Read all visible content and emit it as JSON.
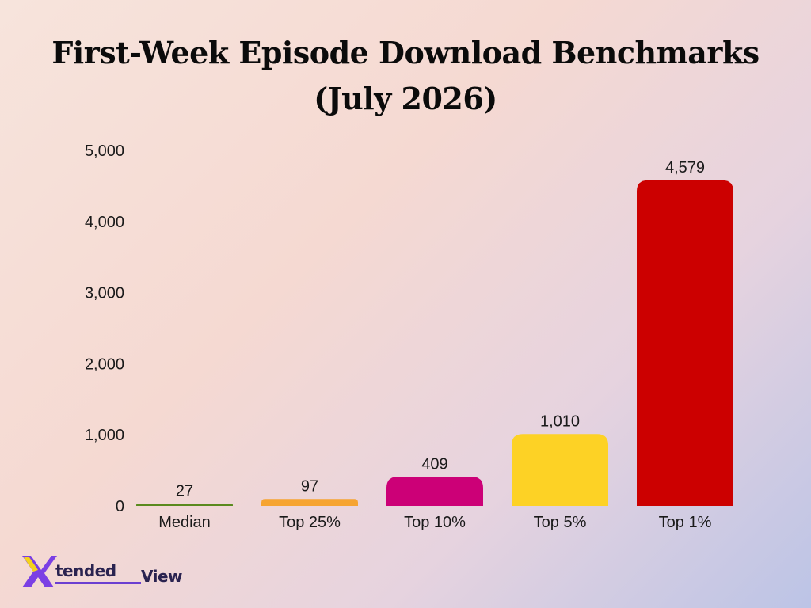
{
  "chart_data": {
    "type": "bar",
    "title_line1": "First-Week Episode Download Benchmarks",
    "title_line2": "(July 2026)",
    "categories": [
      "Median",
      "Top 25%",
      "Top 10%",
      "Top 5%",
      "Top 1%"
    ],
    "values": [
      27,
      97,
      409,
      1010,
      4579
    ],
    "data_labels": [
      "27",
      "97",
      "409",
      "1,010",
      "4,579"
    ],
    "colors": [
      "#5a8a1e",
      "#f6a431",
      "#cc0077",
      "#fdd225",
      "#cc0000"
    ],
    "ylim": [
      0,
      5000
    ],
    "yticks": [
      0,
      1000,
      2000,
      3000,
      4000,
      5000
    ],
    "ytick_labels": [
      "0",
      "1,000",
      "2,000",
      "3,000",
      "4,000",
      "5,000"
    ],
    "grid": false,
    "legend": "none"
  },
  "logo": {
    "text_1": "tended",
    "text_2": "View",
    "colors": {
      "x_purple": "#7b3fe4",
      "x_yellow": "#f5d31c",
      "text": "#2a2350"
    }
  }
}
